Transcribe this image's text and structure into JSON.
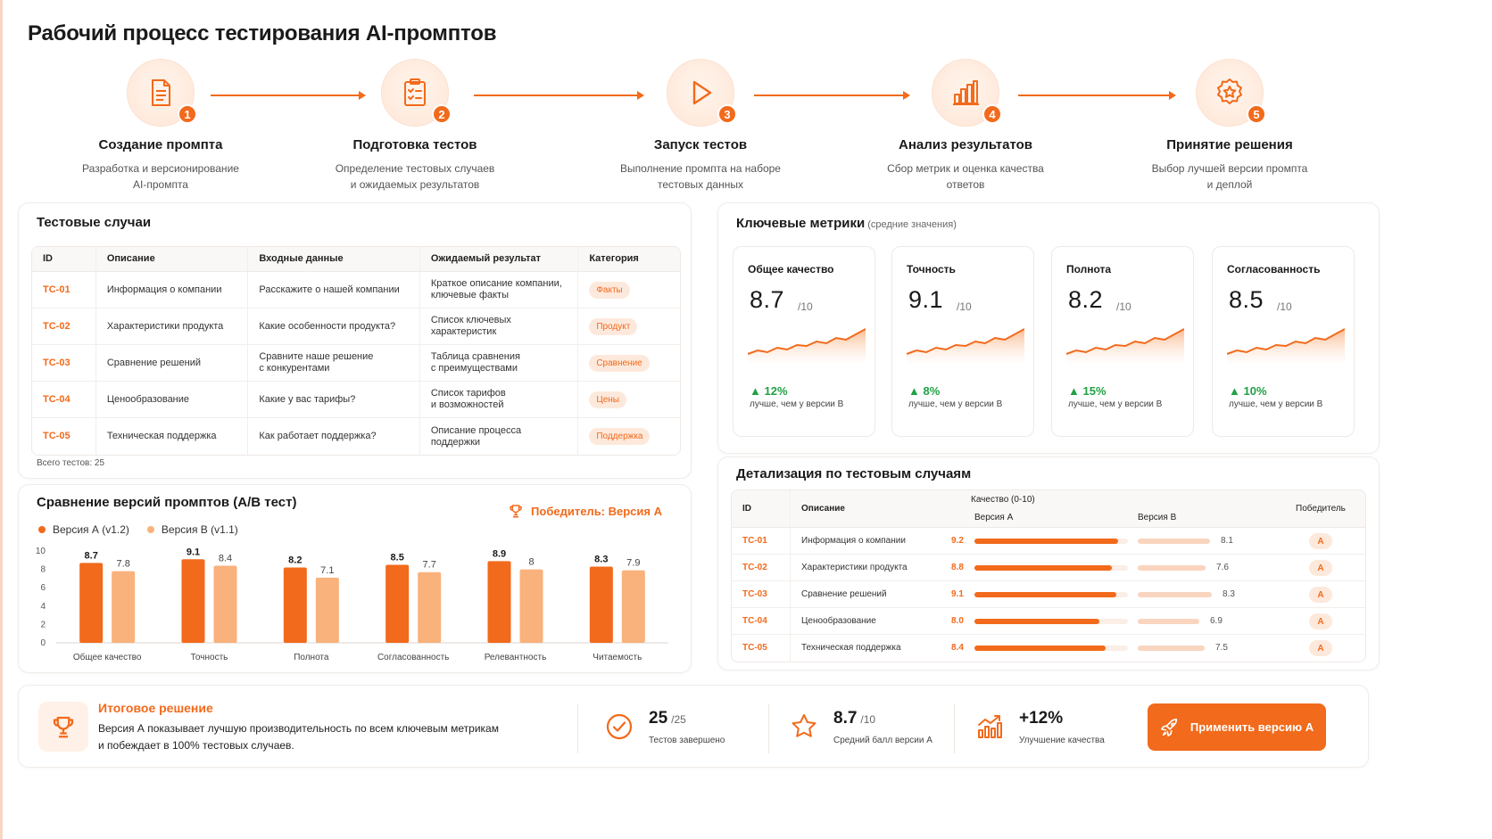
{
  "page_title": "Рабочий процесс тестирования AI-промптов",
  "workflow": [
    {
      "num": "1",
      "title": "Создание промпта",
      "desc1": "Разработка и версионирование",
      "desc2": "AI-промпта",
      "icon": "document-icon"
    },
    {
      "num": "2",
      "title": "Подготовка тестов",
      "desc1": "Определение тестовых случаев",
      "desc2": "и ожидаемых результатов",
      "icon": "clipboard-checklist-icon"
    },
    {
      "num": "3",
      "title": "Запуск тестов",
      "desc1": "Выполнение промпта на наборе",
      "desc2": "тестовых данных",
      "icon": "play-icon"
    },
    {
      "num": "4",
      "title": "Анализ результатов",
      "desc1": "Сбор метрик и оценка качества",
      "desc2": "ответов",
      "icon": "bar-chart-icon"
    },
    {
      "num": "5",
      "title": "Принятие решения",
      "desc1": "Выбор лучшей версии промпта",
      "desc2": "и деплой",
      "icon": "award-star-icon"
    }
  ],
  "test_cases": {
    "title": "Тестовые случаи",
    "columns": [
      "ID",
      "Описание",
      "Входные данные",
      "Ожидаемый результат",
      "Категория"
    ],
    "rows": [
      {
        "id": "TC-01",
        "desc": "Информация о компании",
        "input": "Расскажите о нашей компании",
        "expected1": "Краткое описание компании,",
        "expected2": "ключевые факты",
        "category": "Факты"
      },
      {
        "id": "TC-02",
        "desc": "Характеристики продукта",
        "input": "Какие особенности продукта?",
        "expected1": "Список ключевых",
        "expected2": "характеристик",
        "category": "Продукт"
      },
      {
        "id": "TC-03",
        "desc": "Сравнение решений",
        "input": "Сравните наше решение",
        "input2": "с конкурентами",
        "expected1": "Таблица сравнения",
        "expected2": "с преимуществами",
        "category": "Сравнение"
      },
      {
        "id": "TC-04",
        "desc": "Ценообразование",
        "input": "Какие у вас тарифы?",
        "expected1": "Список тарифов",
        "expected2": "и возможностей",
        "category": "Цены"
      },
      {
        "id": "TC-05",
        "desc": "Техническая поддержка",
        "input": "Как работает поддержка?",
        "expected1": "Описание процесса",
        "expected2": "поддержки",
        "category": "Поддержка"
      }
    ],
    "total": "Всего тестов: 25"
  },
  "ab_test": {
    "title": "Сравнение версий промптов (A/B тест)",
    "winner": "Победитель: Версия А",
    "legend_a": "Версия А (v1.2)",
    "legend_b": "Версия B (v1.1)"
  },
  "chart_data": {
    "type": "bar",
    "categories": [
      "Общее качество",
      "Точность",
      "Полнота",
      "Согласованность",
      "Релевантность",
      "Читаемость"
    ],
    "series": [
      {
        "name": "Версия А (v1.2)",
        "values": [
          8.7,
          9.1,
          8.2,
          8.5,
          8.9,
          8.3
        ],
        "color": "#f26a1b"
      },
      {
        "name": "Версия B (v1.1)",
        "values": [
          7.8,
          8.4,
          7.1,
          7.7,
          8.0,
          7.9
        ],
        "color": "#f9b27c"
      }
    ],
    "yticks": [
      "0",
      "2",
      "4",
      "6",
      "8",
      "10"
    ],
    "ylim": [
      0,
      10
    ],
    "grid": false,
    "legend": "top-left"
  },
  "metrics": {
    "title": "Ключевые метрики",
    "subtitle": "(средние значения)",
    "cards": [
      {
        "name": "Общее качество",
        "value": "8.7",
        "max": "/10",
        "delta": "▲ 12%",
        "caption": "лучше, чем у версии B"
      },
      {
        "name": "Точность",
        "value": "9.1",
        "max": "/10",
        "delta": "▲ 8%",
        "caption": "лучше, чем у версии B"
      },
      {
        "name": "Полнота",
        "value": "8.2",
        "max": "/10",
        "delta": "▲ 15%",
        "caption": "лучше, чем у версии B"
      },
      {
        "name": "Согласованность",
        "value": "8.5",
        "max": "/10",
        "delta": "▲ 10%",
        "caption": "лучше, чем у версии B"
      }
    ]
  },
  "detail": {
    "title": "Детализация по тестовым случаям",
    "col_id": "ID",
    "col_desc": "Описание",
    "col_quality": "Качество (0-10)",
    "col_a": "Версия А",
    "col_b": "Версия B",
    "col_winner": "Победитель",
    "rows": [
      {
        "id": "TC-01",
        "desc": "Информация о компании",
        "a": "9.2",
        "a_val": 9.2,
        "b": "8.1",
        "b_val": 8.1,
        "winner": "A"
      },
      {
        "id": "TC-02",
        "desc": "Характеристики продукта",
        "a": "8.8",
        "a_val": 8.8,
        "b": "7.6",
        "b_val": 7.6,
        "winner": "A"
      },
      {
        "id": "TC-03",
        "desc": "Сравнение решений",
        "a": "9.1",
        "a_val": 9.1,
        "b": "8.3",
        "b_val": 8.3,
        "winner": "A"
      },
      {
        "id": "TC-04",
        "desc": "Ценообразование",
        "a": "8.0",
        "a_val": 8.0,
        "b": "6.9",
        "b_val": 6.9,
        "winner": "A"
      },
      {
        "id": "TC-05",
        "desc": "Техническая поддержка",
        "a": "8.4",
        "a_val": 8.4,
        "b": "7.5",
        "b_val": 7.5,
        "winner": "A"
      }
    ]
  },
  "final": {
    "title": "Итоговое решение",
    "text_line1": "Версия А показывает лучшую производительность по всем ключевым метрикам",
    "text_line2": "и побеждает в 100% тестовых случаев.",
    "stats": [
      {
        "value": "25",
        "suffix": "/25",
        "caption": "Тестов завершено",
        "icon": "check-circle-icon"
      },
      {
        "value": "8.7",
        "suffix": "/10",
        "caption": "Средний балл версии А",
        "icon": "star-icon"
      },
      {
        "value": "+12%",
        "suffix": "",
        "caption": "Улучшение качества",
        "icon": "growth-chart-icon"
      }
    ],
    "button": "Применить версию А"
  },
  "colors": {
    "accent": "#f26a1b",
    "accent_light": "#f9b27c",
    "positive": "#22a046"
  }
}
